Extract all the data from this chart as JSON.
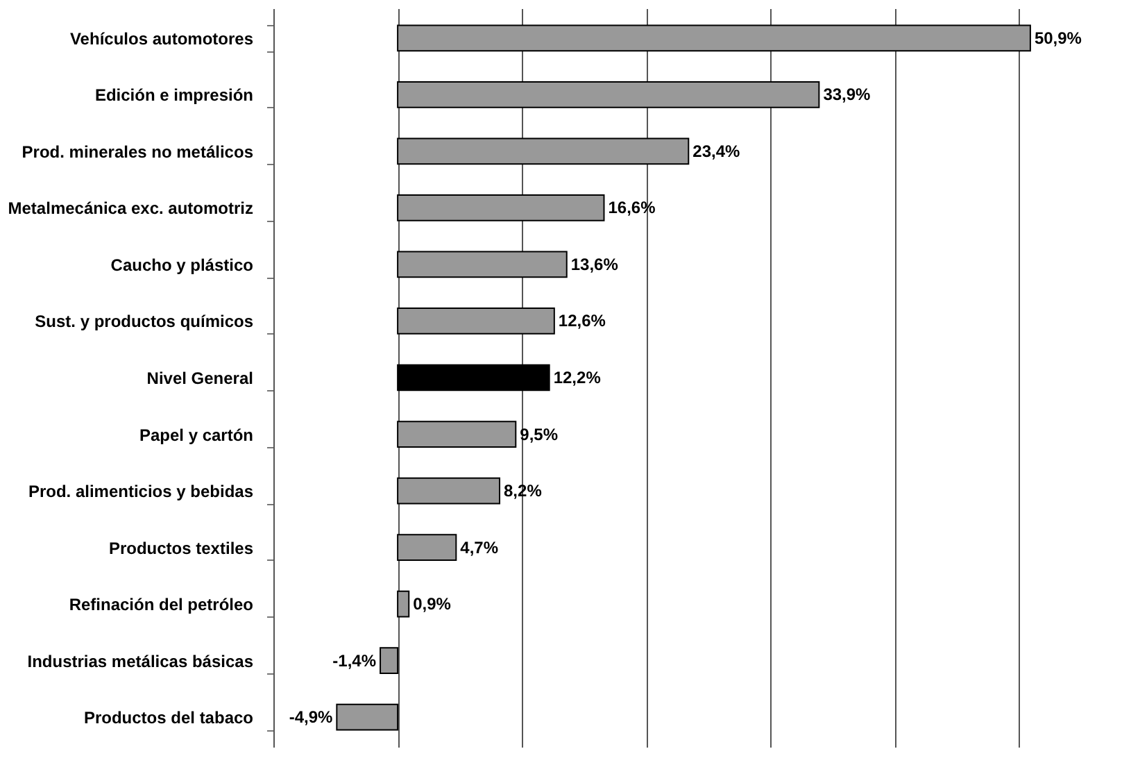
{
  "chart_data": {
    "type": "bar",
    "orientation": "horizontal",
    "categories": [
      "Vehículos automotores",
      "Edición e impresión",
      "Prod. minerales no metálicos",
      "Metalmecánica exc. automotriz",
      "Caucho y plástico",
      "Sust. y productos químicos",
      "Nivel General",
      "Papel y cartón",
      "Prod. alimenticios y bebidas",
      "Productos textiles",
      "Refinación del petróleo",
      "Industrias metálicas básicas",
      "Productos del tabaco"
    ],
    "values": [
      50.9,
      33.9,
      23.4,
      16.6,
      13.6,
      12.6,
      12.2,
      9.5,
      8.2,
      4.7,
      0.9,
      -1.4,
      -4.9
    ],
    "value_labels": [
      "50,9%",
      "33,9%",
      "23,4%",
      "16,6%",
      "13,6%",
      "12,6%",
      "12,2%",
      "9,5%",
      "8,2%",
      "4,7%",
      "0,9%",
      "-1,4%",
      "-4,9%"
    ],
    "colors": [
      "#999999",
      "#999999",
      "#999999",
      "#999999",
      "#999999",
      "#999999",
      "#000000",
      "#999999",
      "#999999",
      "#999999",
      "#999999",
      "#999999",
      "#999999"
    ],
    "xlim": [
      -10,
      59
    ],
    "xticks": [
      {
        "value": -10,
        "label": null
      },
      {
        "value": 0,
        "label": null
      },
      {
        "value": 10,
        "label": null
      },
      {
        "value": 20,
        "label": null
      },
      {
        "value": 30,
        "label": null
      },
      {
        "value": 40,
        "label": null
      },
      {
        "value": 50,
        "label": null
      }
    ],
    "grid": "x",
    "tick_labels": "y"
  }
}
